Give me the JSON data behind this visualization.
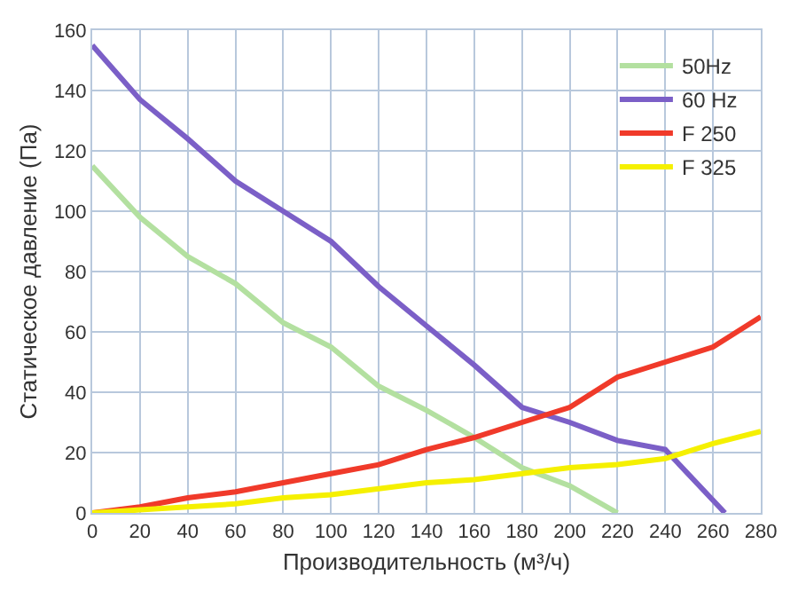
{
  "chart_data": {
    "type": "line",
    "xlabel": "Производительность (м³/ч)",
    "ylabel": "Статическое давление (Па)",
    "xlim": [
      0,
      280
    ],
    "xticks": [
      0,
      20,
      40,
      60,
      80,
      100,
      120,
      140,
      160,
      180,
      200,
      220,
      240,
      260,
      280
    ],
    "ylim": [
      0,
      160
    ],
    "yticks": [
      0,
      20,
      40,
      60,
      80,
      100,
      120,
      140,
      160
    ],
    "grid": true,
    "legend": "top right",
    "marker": "none",
    "series": [
      {
        "name": "50Hz",
        "color": "#b3e0a0",
        "x": [
          0,
          20,
          40,
          60,
          80,
          100,
          120,
          140,
          160,
          180,
          200,
          220
        ],
        "values": [
          115,
          98,
          85,
          76,
          63,
          55,
          42,
          34,
          25,
          15,
          9,
          0
        ]
      },
      {
        "name": "60 Hz",
        "color": "#7b5fc7",
        "x": [
          0,
          20,
          40,
          60,
          80,
          100,
          120,
          140,
          160,
          180,
          200,
          220,
          240,
          265
        ],
        "values": [
          155,
          137,
          124,
          110,
          100,
          90,
          75,
          62,
          49,
          35,
          30,
          24,
          21,
          0
        ]
      },
      {
        "name": "F 250",
        "color": "#f03a2a",
        "x": [
          0,
          20,
          40,
          60,
          80,
          100,
          120,
          140,
          160,
          180,
          200,
          220,
          240,
          260,
          280
        ],
        "values": [
          0,
          2,
          5,
          7,
          10,
          13,
          16,
          21,
          25,
          30,
          35,
          45,
          50,
          55,
          65
        ]
      },
      {
        "name": "F 325",
        "color": "#f5f000",
        "x": [
          0,
          20,
          40,
          60,
          80,
          100,
          120,
          140,
          160,
          180,
          200,
          220,
          240,
          260,
          280
        ],
        "values": [
          0,
          1,
          2,
          3,
          5,
          6,
          8,
          10,
          11,
          13,
          15,
          16,
          18,
          23,
          27
        ]
      }
    ]
  }
}
